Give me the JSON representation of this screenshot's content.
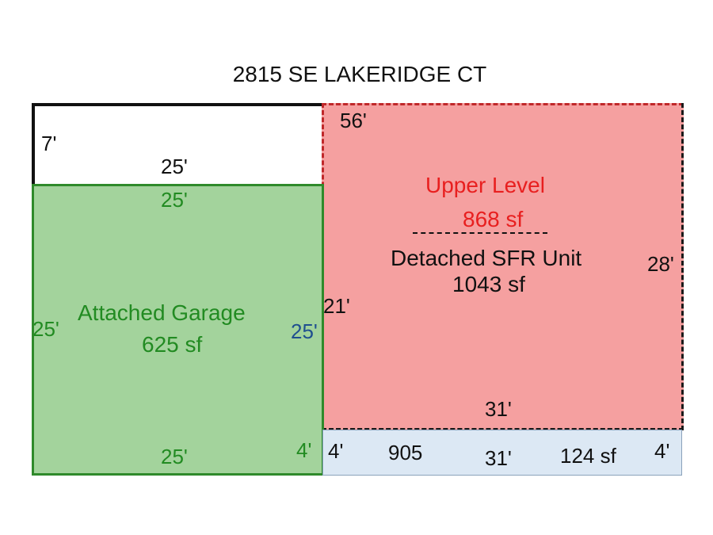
{
  "title": "2815 SE LAKERIDGE CT",
  "strip": {
    "left_dim": "7'",
    "bottom_dim": "25'"
  },
  "upper": {
    "top_dim": "56'",
    "name": "Upper Level",
    "area": "868 sf",
    "separator": "-----------------",
    "unit_name": "Detached SFR Unit",
    "unit_area": "1043 sf",
    "right_dim": "28'",
    "left_dim": "21'",
    "bottom_dim": "31'"
  },
  "garage": {
    "top_dim": "25'",
    "left_dim": "25'",
    "right_dim": "25'",
    "name": "Attached Garage",
    "area": "625 sf",
    "bottom_dim": "25'",
    "corner_dim": "4'"
  },
  "patio": {
    "left_dim": "4'",
    "label": "905",
    "bottom_dim": "31'",
    "area": "124 sf",
    "right_dim": "4'"
  },
  "colors": {
    "upper_fill": "#f5a0a0",
    "upper_border": "#c0282a",
    "garage_fill": "#a3d39c",
    "garage_border": "#2f8a2b",
    "patio_fill": "#dce8f4",
    "red_text": "#e81f1f",
    "green_text": "#228b22",
    "blue_text": "#1f4f8f"
  }
}
